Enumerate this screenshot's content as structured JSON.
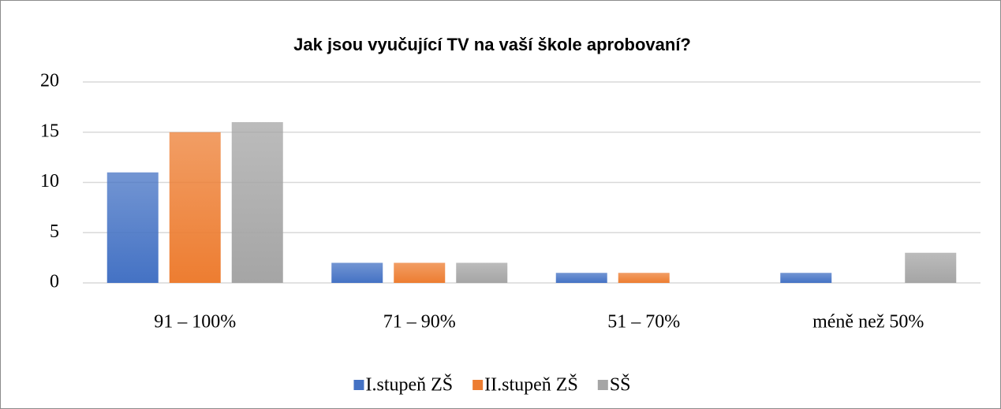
{
  "chart_data": {
    "type": "bar",
    "title": "Jak jsou vyučující TV na vaší škole aprobovaní?",
    "categories": [
      "91 – 100%",
      "71 – 90%",
      "51 – 70%",
      "méně než 50%"
    ],
    "series": [
      {
        "name": "I.stupeň ZŠ",
        "color": "#4472c4",
        "values": [
          11,
          2,
          1,
          1
        ]
      },
      {
        "name": "II.stupeň ZŠ",
        "color": "#ed7d31",
        "values": [
          15,
          2,
          1,
          0
        ]
      },
      {
        "name": "SŠ",
        "color": "#a5a5a5",
        "values": [
          16,
          2,
          0,
          3
        ]
      }
    ],
    "ylim": [
      0,
      20
    ],
    "yticks": [
      0,
      5,
      10,
      15,
      20
    ],
    "grid": true,
    "legend": "bottom"
  }
}
